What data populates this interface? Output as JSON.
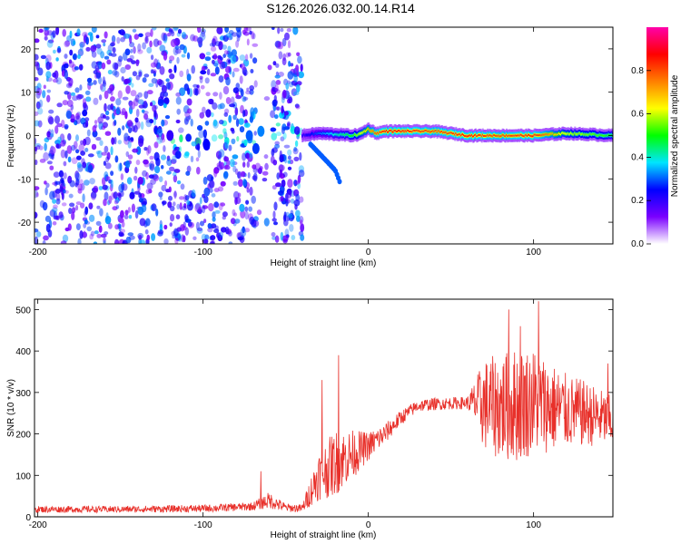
{
  "figure": {
    "title": "S126.2026.032.00.14.R14"
  },
  "chart_data": [
    {
      "type": "heatmap",
      "xlabel": "Height of straight line (km)",
      "ylabel": "Frequency (Hz)",
      "xlim": [
        -202,
        148
      ],
      "ylim": [
        -25,
        25
      ],
      "xticks": [
        -200,
        -100,
        0,
        100
      ],
      "yticks": [
        20,
        10,
        0,
        -10,
        -20
      ],
      "grid": false,
      "colorbar": {
        "label": "Normalized spectral amplitude",
        "range": [
          0.0,
          1.0
        ],
        "ticks": [
          "0.0",
          "0.2",
          "0.4",
          "0.6",
          "0.8"
        ],
        "tick_values": [
          0.0,
          0.2,
          0.4,
          0.6,
          0.8
        ],
        "colors": [
          "#ffffff",
          "#7a00ff",
          "#0000ff",
          "#00e5ff",
          "#00ff00",
          "#ffff00",
          "#ff7f00",
          "#ff0000",
          "#ff00aa"
        ]
      },
      "noise_region": {
        "x": [
          -202,
          -40
        ],
        "amplitude": [
          0.1,
          0.35
        ]
      },
      "carrier_ridge": {
        "x": [
          -40,
          -30,
          -20,
          -10,
          -5,
          0,
          5,
          10,
          20,
          40,
          60,
          80,
          100,
          120,
          148
        ],
        "frequency": [
          0.0,
          0.5,
          0.3,
          0.0,
          0.3,
          1.5,
          0.5,
          1.0,
          1.0,
          1.0,
          0.0,
          0.0,
          0.0,
          0.5,
          0.0
        ],
        "amplitude": [
          0.2,
          0.3,
          0.4,
          0.5,
          0.6,
          0.7,
          0.8,
          0.85,
          0.85,
          0.8,
          0.85,
          0.8,
          0.85,
          0.6,
          0.5
        ]
      },
      "secondary_tone": {
        "x": [
          -35,
          -30,
          -25,
          -20,
          -17
        ],
        "frequency": [
          -2,
          -4,
          -6,
          -8,
          -11
        ],
        "amplitude": 0.3
      }
    },
    {
      "type": "line",
      "xlabel": "Height of straight line (km)",
      "ylabel": "SNR (10 * v/v)",
      "xlim": [
        -202,
        148
      ],
      "ylim": [
        0,
        525
      ],
      "xticks": [
        -200,
        -100,
        0,
        100
      ],
      "yticks": [
        0,
        100,
        200,
        300,
        400,
        500
      ],
      "grid": false,
      "color": "#e8302a",
      "envelope": {
        "x": [
          -202,
          -150,
          -100,
          -70,
          -60,
          -50,
          -40,
          -30,
          -20,
          -10,
          0,
          10,
          20,
          30,
          40,
          50,
          60,
          65,
          70,
          80,
          90,
          100,
          110,
          120,
          130,
          140,
          148
        ],
        "mean": [
          18,
          18,
          20,
          25,
          40,
          22,
          20,
          100,
          130,
          150,
          170,
          200,
          240,
          268,
          272,
          274,
          275,
          275,
          270,
          265,
          270,
          280,
          265,
          255,
          250,
          240,
          230
        ],
        "spread": [
          8,
          8,
          9,
          10,
          20,
          10,
          10,
          60,
          80,
          60,
          35,
          25,
          18,
          15,
          15,
          15,
          15,
          60,
          110,
          130,
          140,
          130,
          110,
          90,
          80,
          70,
          60
        ]
      },
      "spikes": [
        {
          "x": -65,
          "y": 110
        },
        {
          "x": -18,
          "y": 390
        },
        {
          "x": -28,
          "y": 330
        },
        {
          "x": 85,
          "y": 500
        },
        {
          "x": 103,
          "y": 520
        },
        {
          "x": 92,
          "y": 460
        },
        {
          "x": 145,
          "y": 370
        }
      ]
    }
  ]
}
